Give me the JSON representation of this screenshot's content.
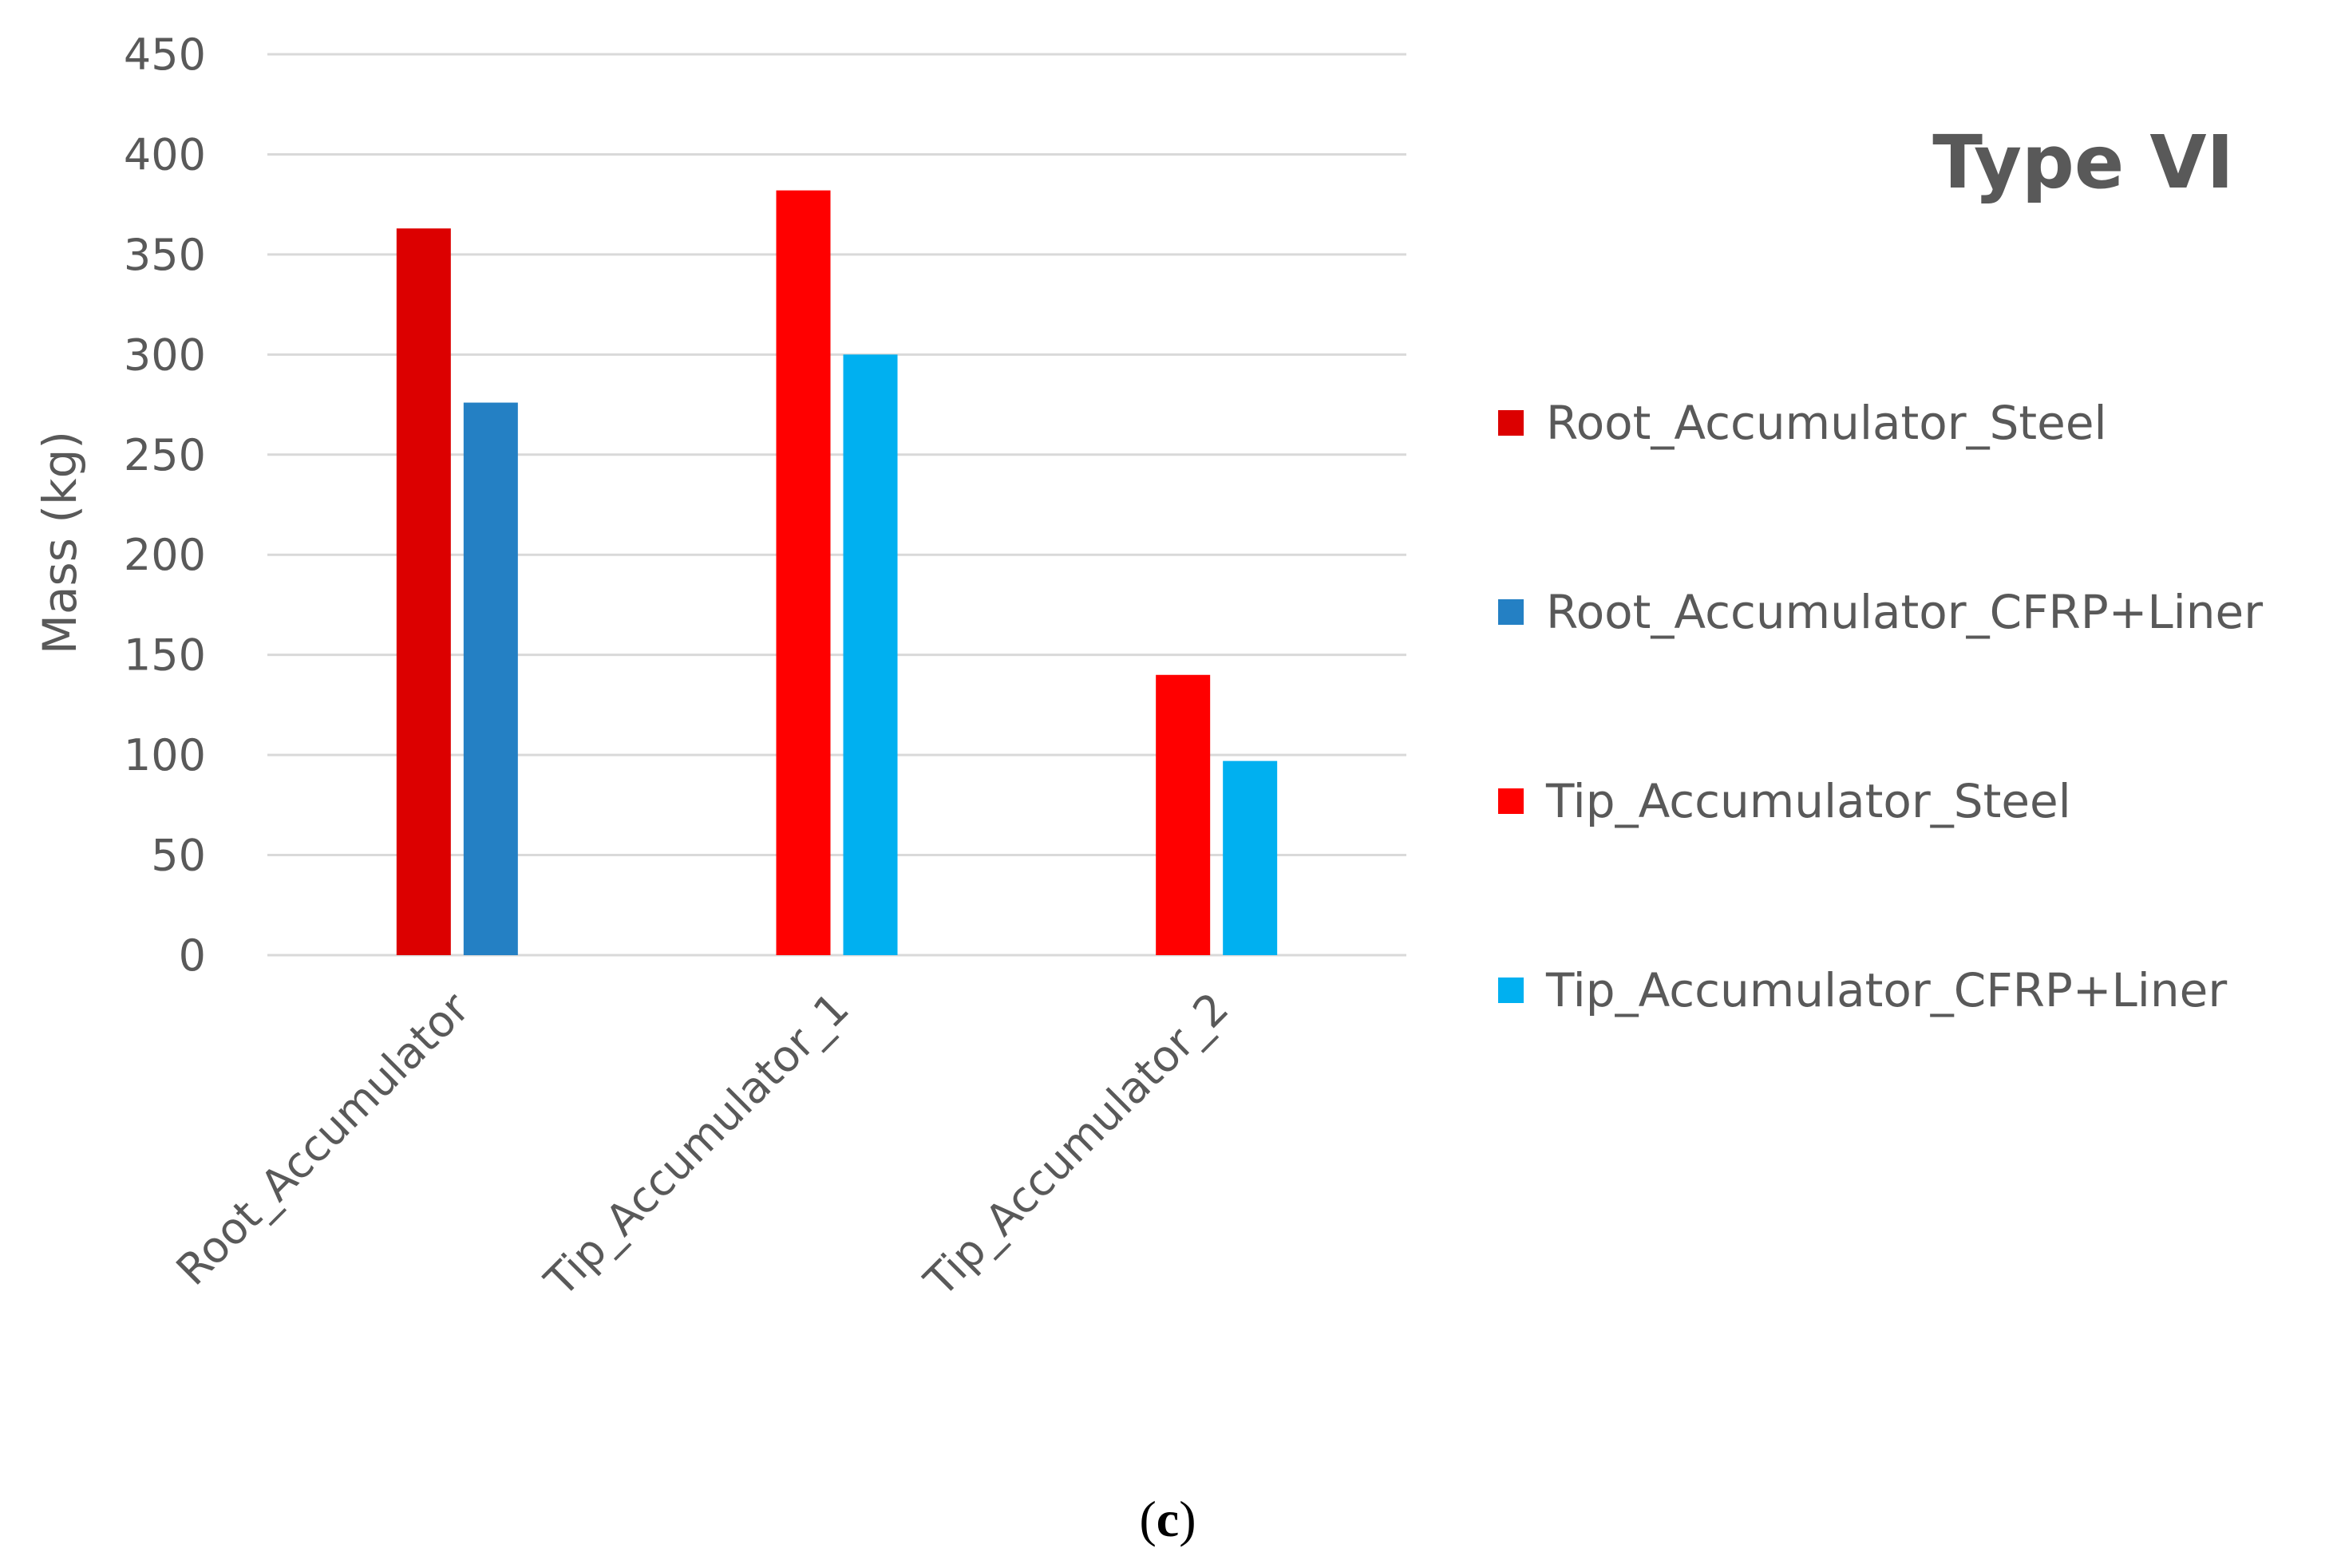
{
  "chart_data": {
    "type": "bar",
    "title": "Type VI",
    "xlabel": "",
    "ylabel": "Mass (kg)",
    "ylim": [
      0,
      450
    ],
    "ytick_step": 50,
    "grid": true,
    "legend_position": "right",
    "categories": [
      "Root_Accumulator",
      "Tip_Accumulator_1",
      "Tip_Accumulator_2"
    ],
    "series": [
      {
        "name": "Root_Accumulator_Steel",
        "color": "#dc0000",
        "values": [
          363,
          null,
          null
        ]
      },
      {
        "name": "Root_Accumulator_CFRP+Liner",
        "color": "#2480c4",
        "values": [
          276,
          null,
          null
        ]
      },
      {
        "name": "Tip_Accumulator_Steel",
        "color": "#ff0000",
        "values": [
          null,
          382,
          140
        ]
      },
      {
        "name": "Tip_Accumulator_CFRP+Liner",
        "color": "#00b0f0",
        "values": [
          null,
          300,
          97
        ]
      }
    ],
    "bar_groups": [
      {
        "category": "Root_Accumulator",
        "series": [
          "Root_Accumulator_Steel",
          "Root_Accumulator_CFRP+Liner"
        ]
      },
      {
        "category": "Tip_Accumulator_1",
        "series": [
          "Tip_Accumulator_Steel",
          "Tip_Accumulator_CFRP+Liner"
        ]
      },
      {
        "category": "Tip_Accumulator_2",
        "series": [
          "Tip_Accumulator_Steel",
          "Tip_Accumulator_CFRP+Liner"
        ]
      }
    ]
  },
  "caption": {
    "open": "(",
    "letter": "c",
    "close": ")"
  }
}
